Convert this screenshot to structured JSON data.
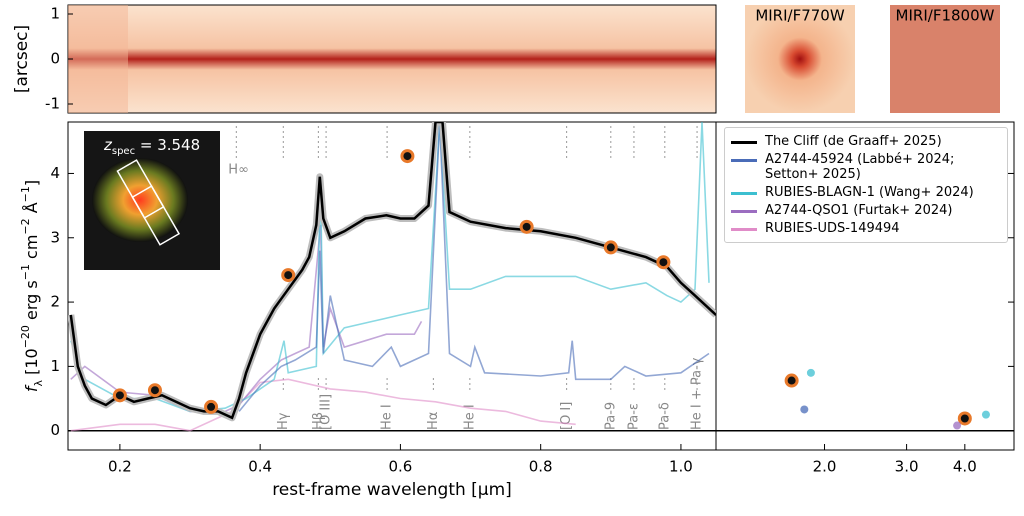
{
  "chart_data": {
    "type": "line",
    "top_panel": {
      "y_label": "[arcsec]",
      "ylim": [
        -1.2,
        1.2
      ],
      "yticks": [
        -1,
        0,
        1
      ]
    },
    "images": [
      "MIRI/F770W",
      "MIRI/F1800W"
    ],
    "inset_label": [
      "z",
      "spec",
      " = 3.548"
    ],
    "y_label": [
      "f",
      "λ",
      " [10",
      "−20",
      " erg s",
      "−1",
      " cm",
      "−2",
      " Å",
      "−1",
      "]"
    ],
    "x_label": "rest-frame wavelength [µm]",
    "xlim": [
      0.126,
      1.05
    ],
    "xticks": [
      0.2,
      0.4,
      0.6,
      0.8,
      {
        "value": 1,
        "label": "1.0"
      }
    ],
    "x2lim": [
      1.17,
      5.1
    ],
    "x2_log": true,
    "x2ticks": [
      {
        "value": 2,
        "label": "2.0"
      },
      {
        "value": 3,
        "label": "3.0"
      },
      {
        "value": 4,
        "label": "4.0"
      }
    ],
    "ylim": [
      -0.3,
      4.8
    ],
    "yticks": [
      0,
      1,
      2,
      3,
      4
    ],
    "lines": [
      {
        "label": "H∞",
        "x": 0.366
      },
      {
        "label": "Hγ",
        "x": 0.433
      },
      {
        "label": "Hβ",
        "x": 0.483
      },
      {
        "label": "[O III]",
        "x": 0.494
      },
      {
        "label": "He I",
        "x": 0.581
      },
      {
        "label": "Hα",
        "x": 0.647
      },
      {
        "label": "He I",
        "x": 0.699
      },
      {
        "label": "[O I]",
        "x": 0.837
      },
      {
        "label": "Pa-9",
        "x": 0.9
      },
      {
        "label": "Pa-ε",
        "x": 0.933
      },
      {
        "label": "Pa-δ",
        "x": 0.977
      },
      {
        "label": "He I + Pa-γ",
        "x": 1.023
      }
    ],
    "series": [
      {
        "name": "The Cliff (de Graaff+ 2025)",
        "color": "#000000",
        "x": [
          0.13,
          0.14,
          0.15,
          0.16,
          0.18,
          0.2,
          0.22,
          0.24,
          0.26,
          0.28,
          0.3,
          0.32,
          0.34,
          0.36,
          0.37,
          0.38,
          0.4,
          0.42,
          0.44,
          0.46,
          0.47,
          0.48,
          0.485,
          0.49,
          0.5,
          0.52,
          0.55,
          0.58,
          0.6,
          0.62,
          0.64,
          0.65,
          0.66,
          0.67,
          0.7,
          0.75,
          0.8,
          0.85,
          0.9,
          0.95,
          0.98,
          1.0,
          1.02,
          1.05
        ],
        "values": [
          1.8,
          1.0,
          0.7,
          0.5,
          0.4,
          0.55,
          0.45,
          0.5,
          0.55,
          0.45,
          0.35,
          0.3,
          0.3,
          0.2,
          0.5,
          0.9,
          1.5,
          1.9,
          2.2,
          2.5,
          2.7,
          3.2,
          3.95,
          3.3,
          3.0,
          3.1,
          3.3,
          3.35,
          3.3,
          3.3,
          3.5,
          4.8,
          4.8,
          3.4,
          3.25,
          3.15,
          3.1,
          3.0,
          2.85,
          2.7,
          2.55,
          2.3,
          2.1,
          1.8
        ],
        "phot_x": [
          0.2,
          0.25,
          0.33,
          0.44,
          0.61,
          0.78,
          0.9,
          0.975,
          1.7,
          4.0
        ],
        "phot_values": [
          0.55,
          0.63,
          0.37,
          2.42,
          4.27,
          3.17,
          2.85,
          2.62,
          0.78,
          0.19
        ]
      },
      {
        "name": "A2744-45924 (Labbé+ 2024; Setton+ 2025)",
        "color": "#4a6cb8",
        "x": [
          0.37,
          0.4,
          0.43,
          0.45,
          0.48,
          0.485,
          0.49,
          0.5,
          0.52,
          0.56,
          0.587,
          0.6,
          0.64,
          0.656,
          0.67,
          0.7,
          0.706,
          0.72,
          0.8,
          0.84,
          0.845,
          0.85,
          0.9,
          0.92,
          0.95,
          1.0,
          1.04
        ],
        "values": [
          0.3,
          0.7,
          1.0,
          1.1,
          1.3,
          2.8,
          1.2,
          2.1,
          1.1,
          1.0,
          1.3,
          1.0,
          1.2,
          4.8,
          1.2,
          1.0,
          1.3,
          0.9,
          0.85,
          0.9,
          1.4,
          0.8,
          0.8,
          1.0,
          0.85,
          0.9,
          1.2
        ],
        "phot_x": [
          1.81
        ],
        "phot_values": [
          0.33
        ]
      },
      {
        "name": "RUBIES-BLAGN-1 (Wang+ 2024)",
        "color": "#3cbfd0",
        "x": [
          0.13,
          0.15,
          0.2,
          0.25,
          0.3,
          0.35,
          0.38,
          0.42,
          0.434,
          0.44,
          0.48,
          0.486,
          0.49,
          0.52,
          0.56,
          0.6,
          0.64,
          0.656,
          0.67,
          0.7,
          0.75,
          0.8,
          0.85,
          0.9,
          0.95,
          0.98,
          1.0,
          1.02,
          1.03,
          1.04
        ],
        "values": [
          1.4,
          0.8,
          0.5,
          0.5,
          0.3,
          0.35,
          0.5,
          0.8,
          1.4,
          0.9,
          1.0,
          3.9,
          1.2,
          1.6,
          1.7,
          1.8,
          1.9,
          4.8,
          2.2,
          2.2,
          2.4,
          2.4,
          2.4,
          2.2,
          2.3,
          2.1,
          2.0,
          2.2,
          4.8,
          2.3
        ],
        "phot_x": [
          1.87,
          4.44
        ],
        "phot_values": [
          0.9,
          0.25
        ]
      },
      {
        "name": "A2744-QSO1 (Furtak+ 2024)",
        "color": "#9b6dc0",
        "x": [
          0.13,
          0.15,
          0.2,
          0.25,
          0.3,
          0.35,
          0.37,
          0.4,
          0.43,
          0.45,
          0.47,
          0.486,
          0.49,
          0.5,
          0.52,
          0.55,
          0.58,
          0.6,
          0.62,
          0.63
        ],
        "values": [
          0.8,
          1.0,
          0.6,
          0.55,
          0.3,
          0.3,
          0.4,
          0.8,
          1.1,
          1.2,
          1.3,
          3.2,
          1.3,
          1.9,
          1.3,
          1.4,
          1.5,
          1.5,
          1.5,
          1.7
        ],
        "phot_x": [
          3.85
        ],
        "phot_values": [
          0.08
        ]
      },
      {
        "name": "RUBIES-UDS-149494",
        "color": "#e08cc8",
        "x": [
          0.13,
          0.2,
          0.25,
          0.3,
          0.36,
          0.4,
          0.44,
          0.5,
          0.55,
          0.6,
          0.65,
          0.7,
          0.75,
          0.8,
          0.85
        ],
        "values": [
          0.0,
          0.1,
          0.1,
          0.0,
          0.3,
          0.75,
          0.8,
          0.65,
          0.6,
          0.5,
          0.45,
          0.35,
          0.3,
          0.15,
          0.1
        ],
        "phot_x": [],
        "phot_values": []
      }
    ]
  }
}
